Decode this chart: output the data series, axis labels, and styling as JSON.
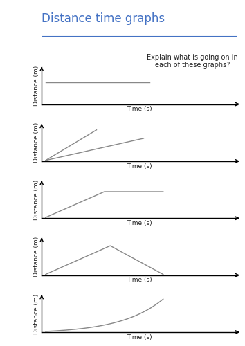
{
  "title": "Distance time graphs",
  "title_color": "#4472C4",
  "explain_text": "Explain what is going on in\neach of these graphs?",
  "xlabel": "Time (s)",
  "ylabel": "Distance (m)",
  "line_color": "#888888",
  "axis_color": "#000000",
  "background_color": "#ffffff",
  "title_fontsize": 12,
  "label_fontsize": 6.5,
  "annotation_fontsize": 7.0,
  "line_width": 1.0,
  "fig_width": 3.54,
  "fig_height": 5.0,
  "dpi": 100
}
